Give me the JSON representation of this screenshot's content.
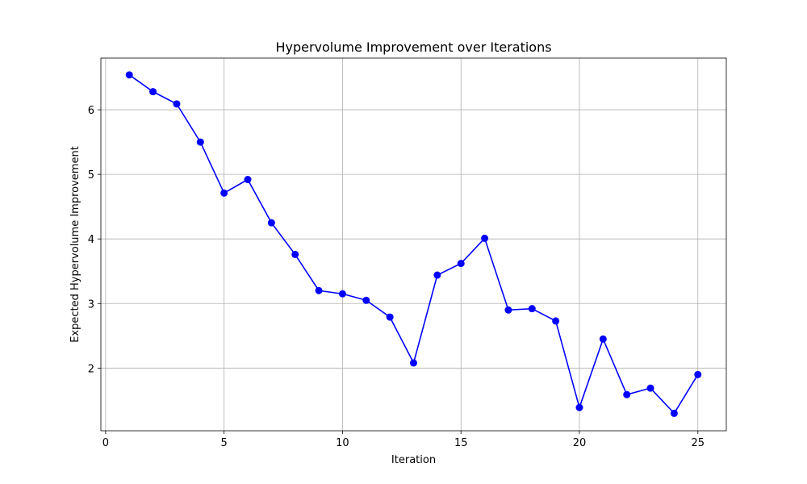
{
  "chart_data": {
    "type": "line",
    "title": "Hypervolume Improvement over Iterations",
    "xlabel": "Iteration",
    "ylabel": "Expected Hypervolume Improvement",
    "xlim": [
      -0.2,
      26.2
    ],
    "ylim": [
      1.03,
      6.8
    ],
    "xticks": [
      0,
      5,
      10,
      15,
      20,
      25
    ],
    "yticks": [
      2,
      3,
      4,
      5,
      6
    ],
    "grid": true,
    "colors": {
      "line": "#0000ff",
      "marker": "#0000ff"
    },
    "series": [
      {
        "x": [
          1,
          2,
          3,
          4,
          5,
          6,
          7,
          8,
          9,
          10,
          11,
          12,
          13,
          14,
          15,
          16,
          17,
          18,
          19,
          20,
          21,
          22,
          23,
          24,
          25
        ],
        "y": [
          6.54,
          6.28,
          6.09,
          5.5,
          4.71,
          4.92,
          4.25,
          3.76,
          3.2,
          3.15,
          3.05,
          2.79,
          2.08,
          3.44,
          3.62,
          4.01,
          2.9,
          2.92,
          2.73,
          1.39,
          2.45,
          1.59,
          1.69,
          1.3,
          1.9
        ]
      }
    ]
  }
}
